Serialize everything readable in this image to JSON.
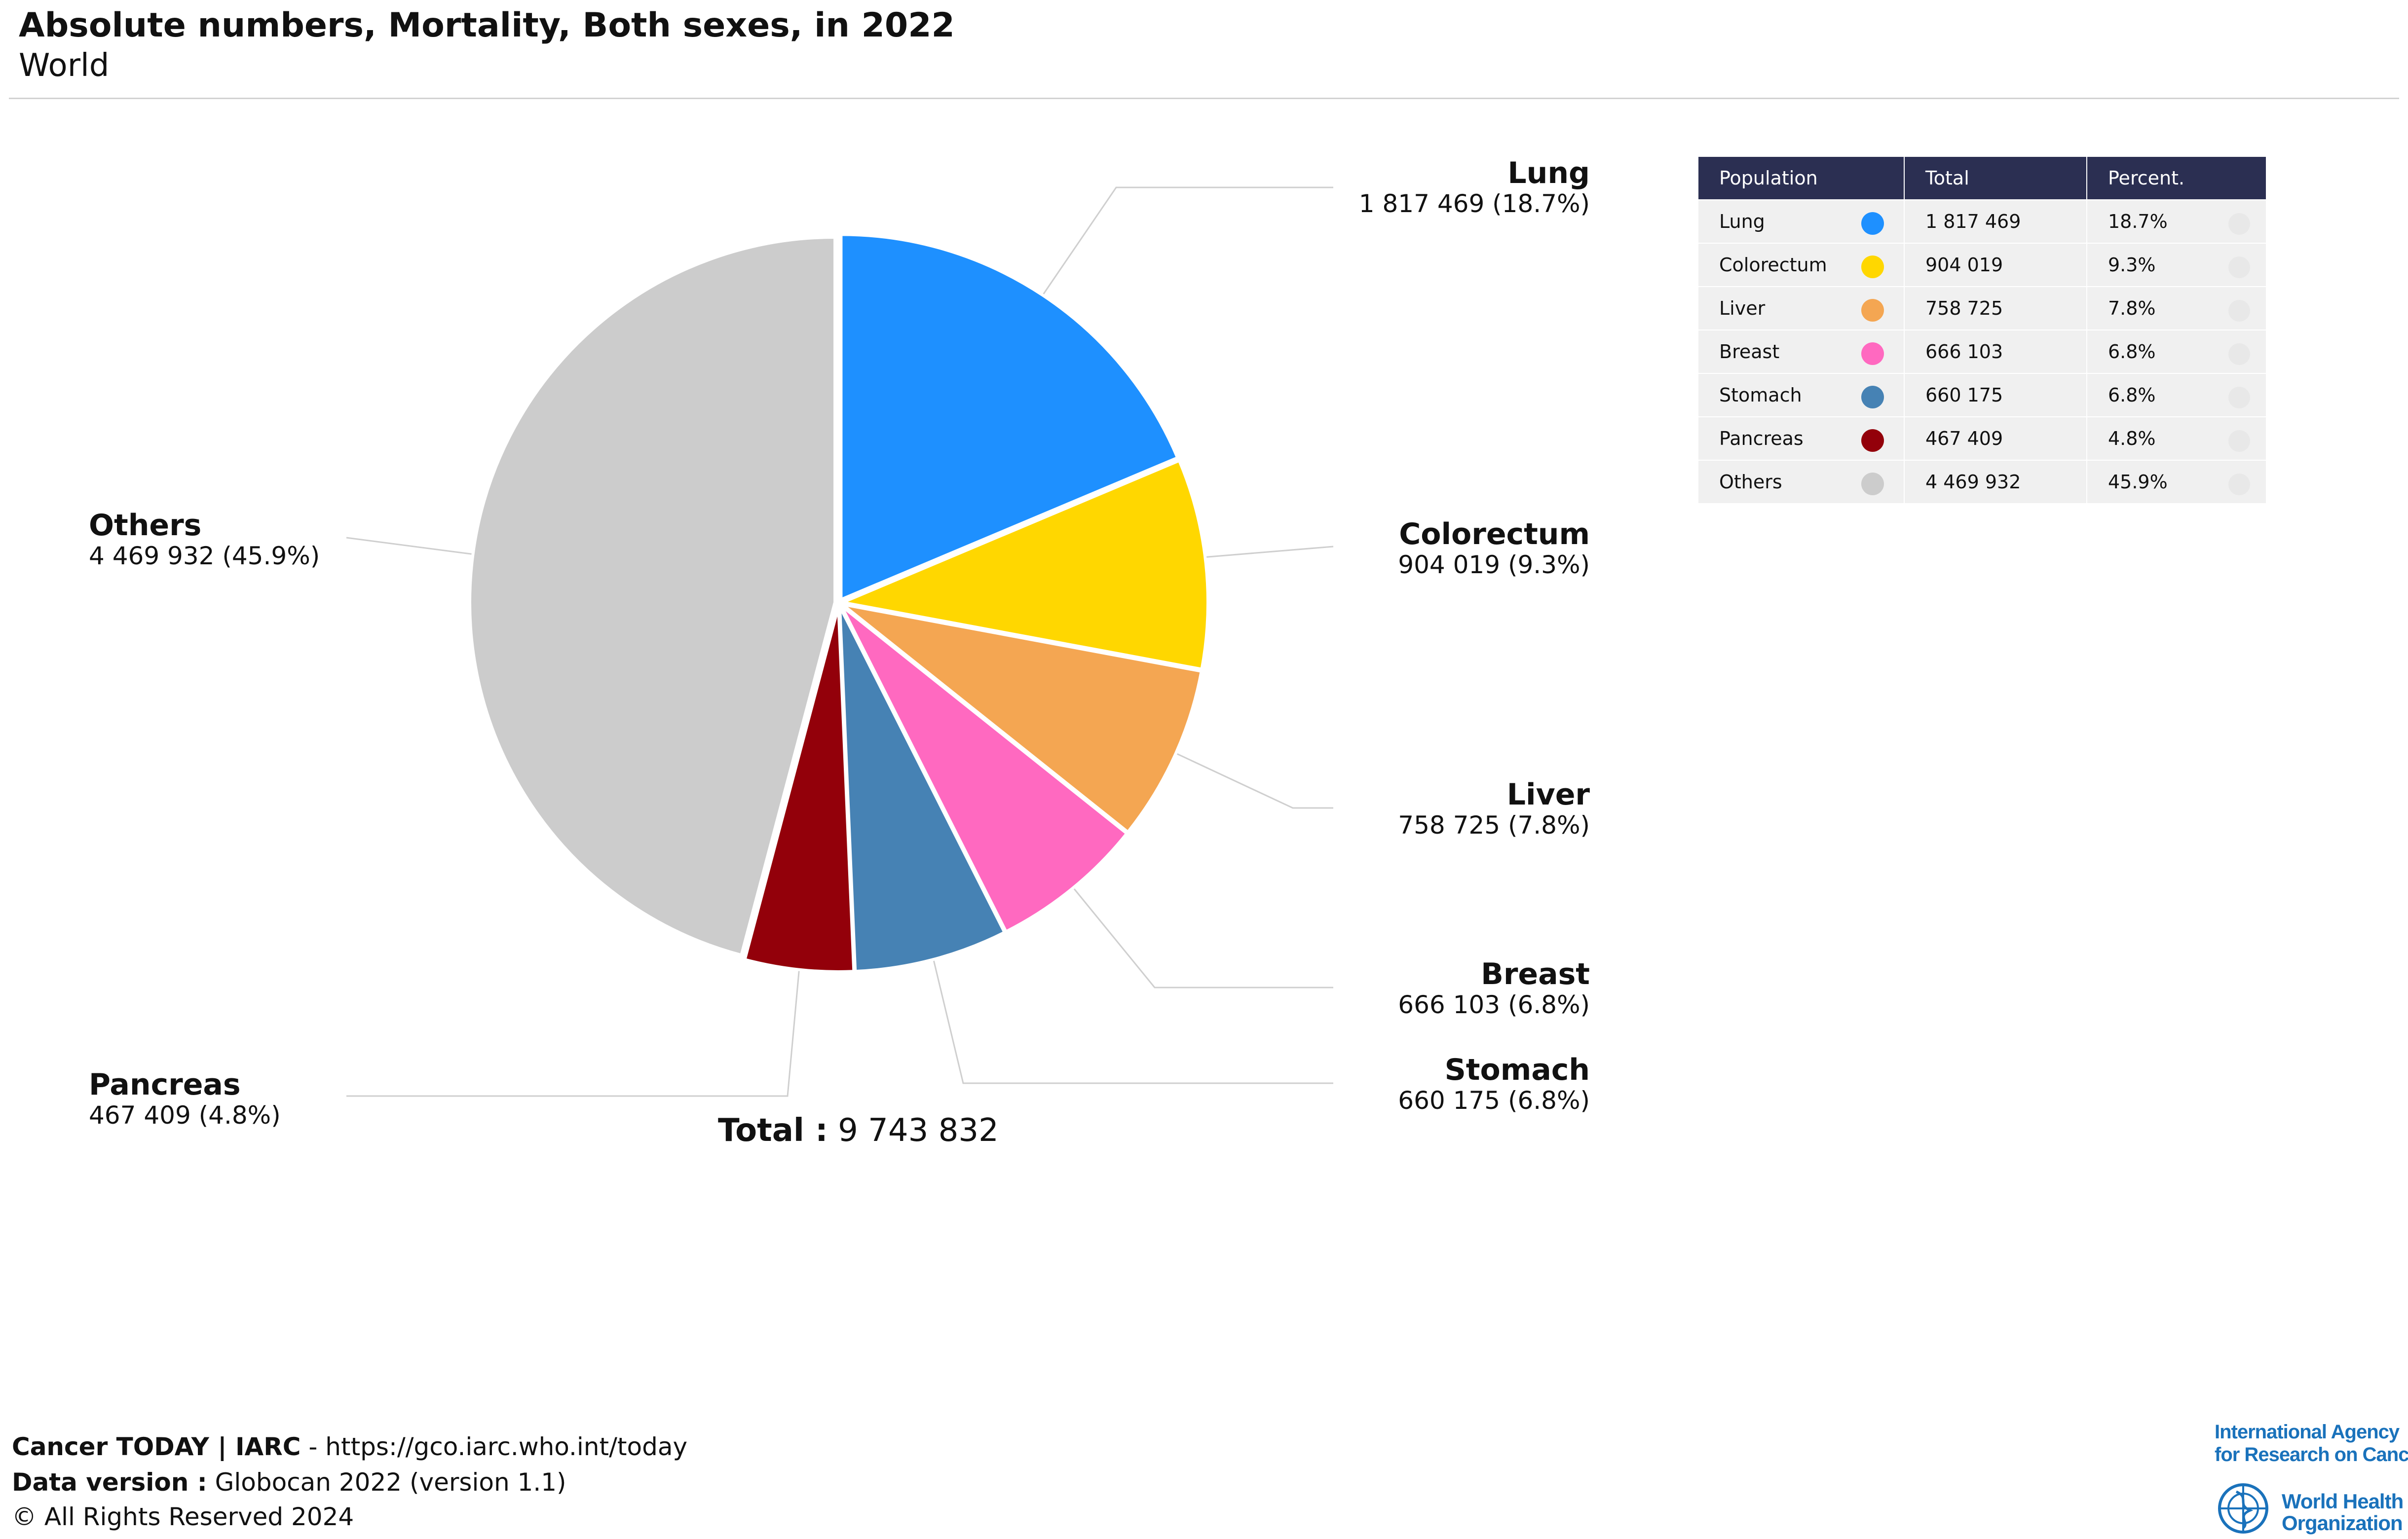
{
  "header": {
    "title": "Absolute numbers, Mortality, Both sexes, in 2022",
    "subtitle": "World"
  },
  "chart_data": {
    "type": "pie",
    "title": "Absolute numbers, Mortality, Both sexes, in 2022",
    "subtitle": "World",
    "slices": [
      {
        "name": "Lung",
        "value": 1817469,
        "value_label": "1 817 469",
        "percent": "18.7%",
        "label": "1 817 469 (18.7%)",
        "color": "#1e90ff"
      },
      {
        "name": "Colorectum",
        "value": 904019,
        "value_label": "904 019",
        "percent": "9.3%",
        "label": "904 019 (9.3%)",
        "color": "#ffd700"
      },
      {
        "name": "Liver",
        "value": 758725,
        "value_label": "758 725",
        "percent": "7.8%",
        "label": "758 725 (7.8%)",
        "color": "#f4a652"
      },
      {
        "name": "Breast",
        "value": 666103,
        "value_label": "666 103",
        "percent": "6.8%",
        "label": "666 103 (6.8%)",
        "color": "#ff69c0"
      },
      {
        "name": "Stomach",
        "value": 660175,
        "value_label": "660 175",
        "percent": "6.8%",
        "label": "660 175 (6.8%)",
        "color": "#4682b4"
      },
      {
        "name": "Pancreas",
        "value": 467409,
        "value_label": "467 409",
        "percent": "4.8%",
        "label": "467 409 (4.8%)",
        "color": "#93000a"
      },
      {
        "name": "Others",
        "value": 4469932,
        "value_label": "4 469 932",
        "percent": "45.9%",
        "label": "4 469 932 (45.9%)",
        "color": "#cccccc"
      }
    ],
    "total_label": "Total :",
    "total_value": "9 743 832"
  },
  "table": {
    "headers": [
      "Population",
      "Total",
      "Percent."
    ]
  },
  "footer": {
    "line1_bold": "Cancer TODAY | IARC",
    "line1_rest": " - https://gco.iarc.who.int/today",
    "line2_bold": "Data version :",
    "line2_rest": " Globocan 2022 (version 1.1)",
    "line3": "© All Rights Reserved 2024"
  },
  "logos": {
    "iarc_line1": "International Agency",
    "iarc_line2": "for Research on Cancer",
    "who_line1": "World Health",
    "who_line2": "Organization",
    "who_icon": "who-emblem-icon"
  }
}
